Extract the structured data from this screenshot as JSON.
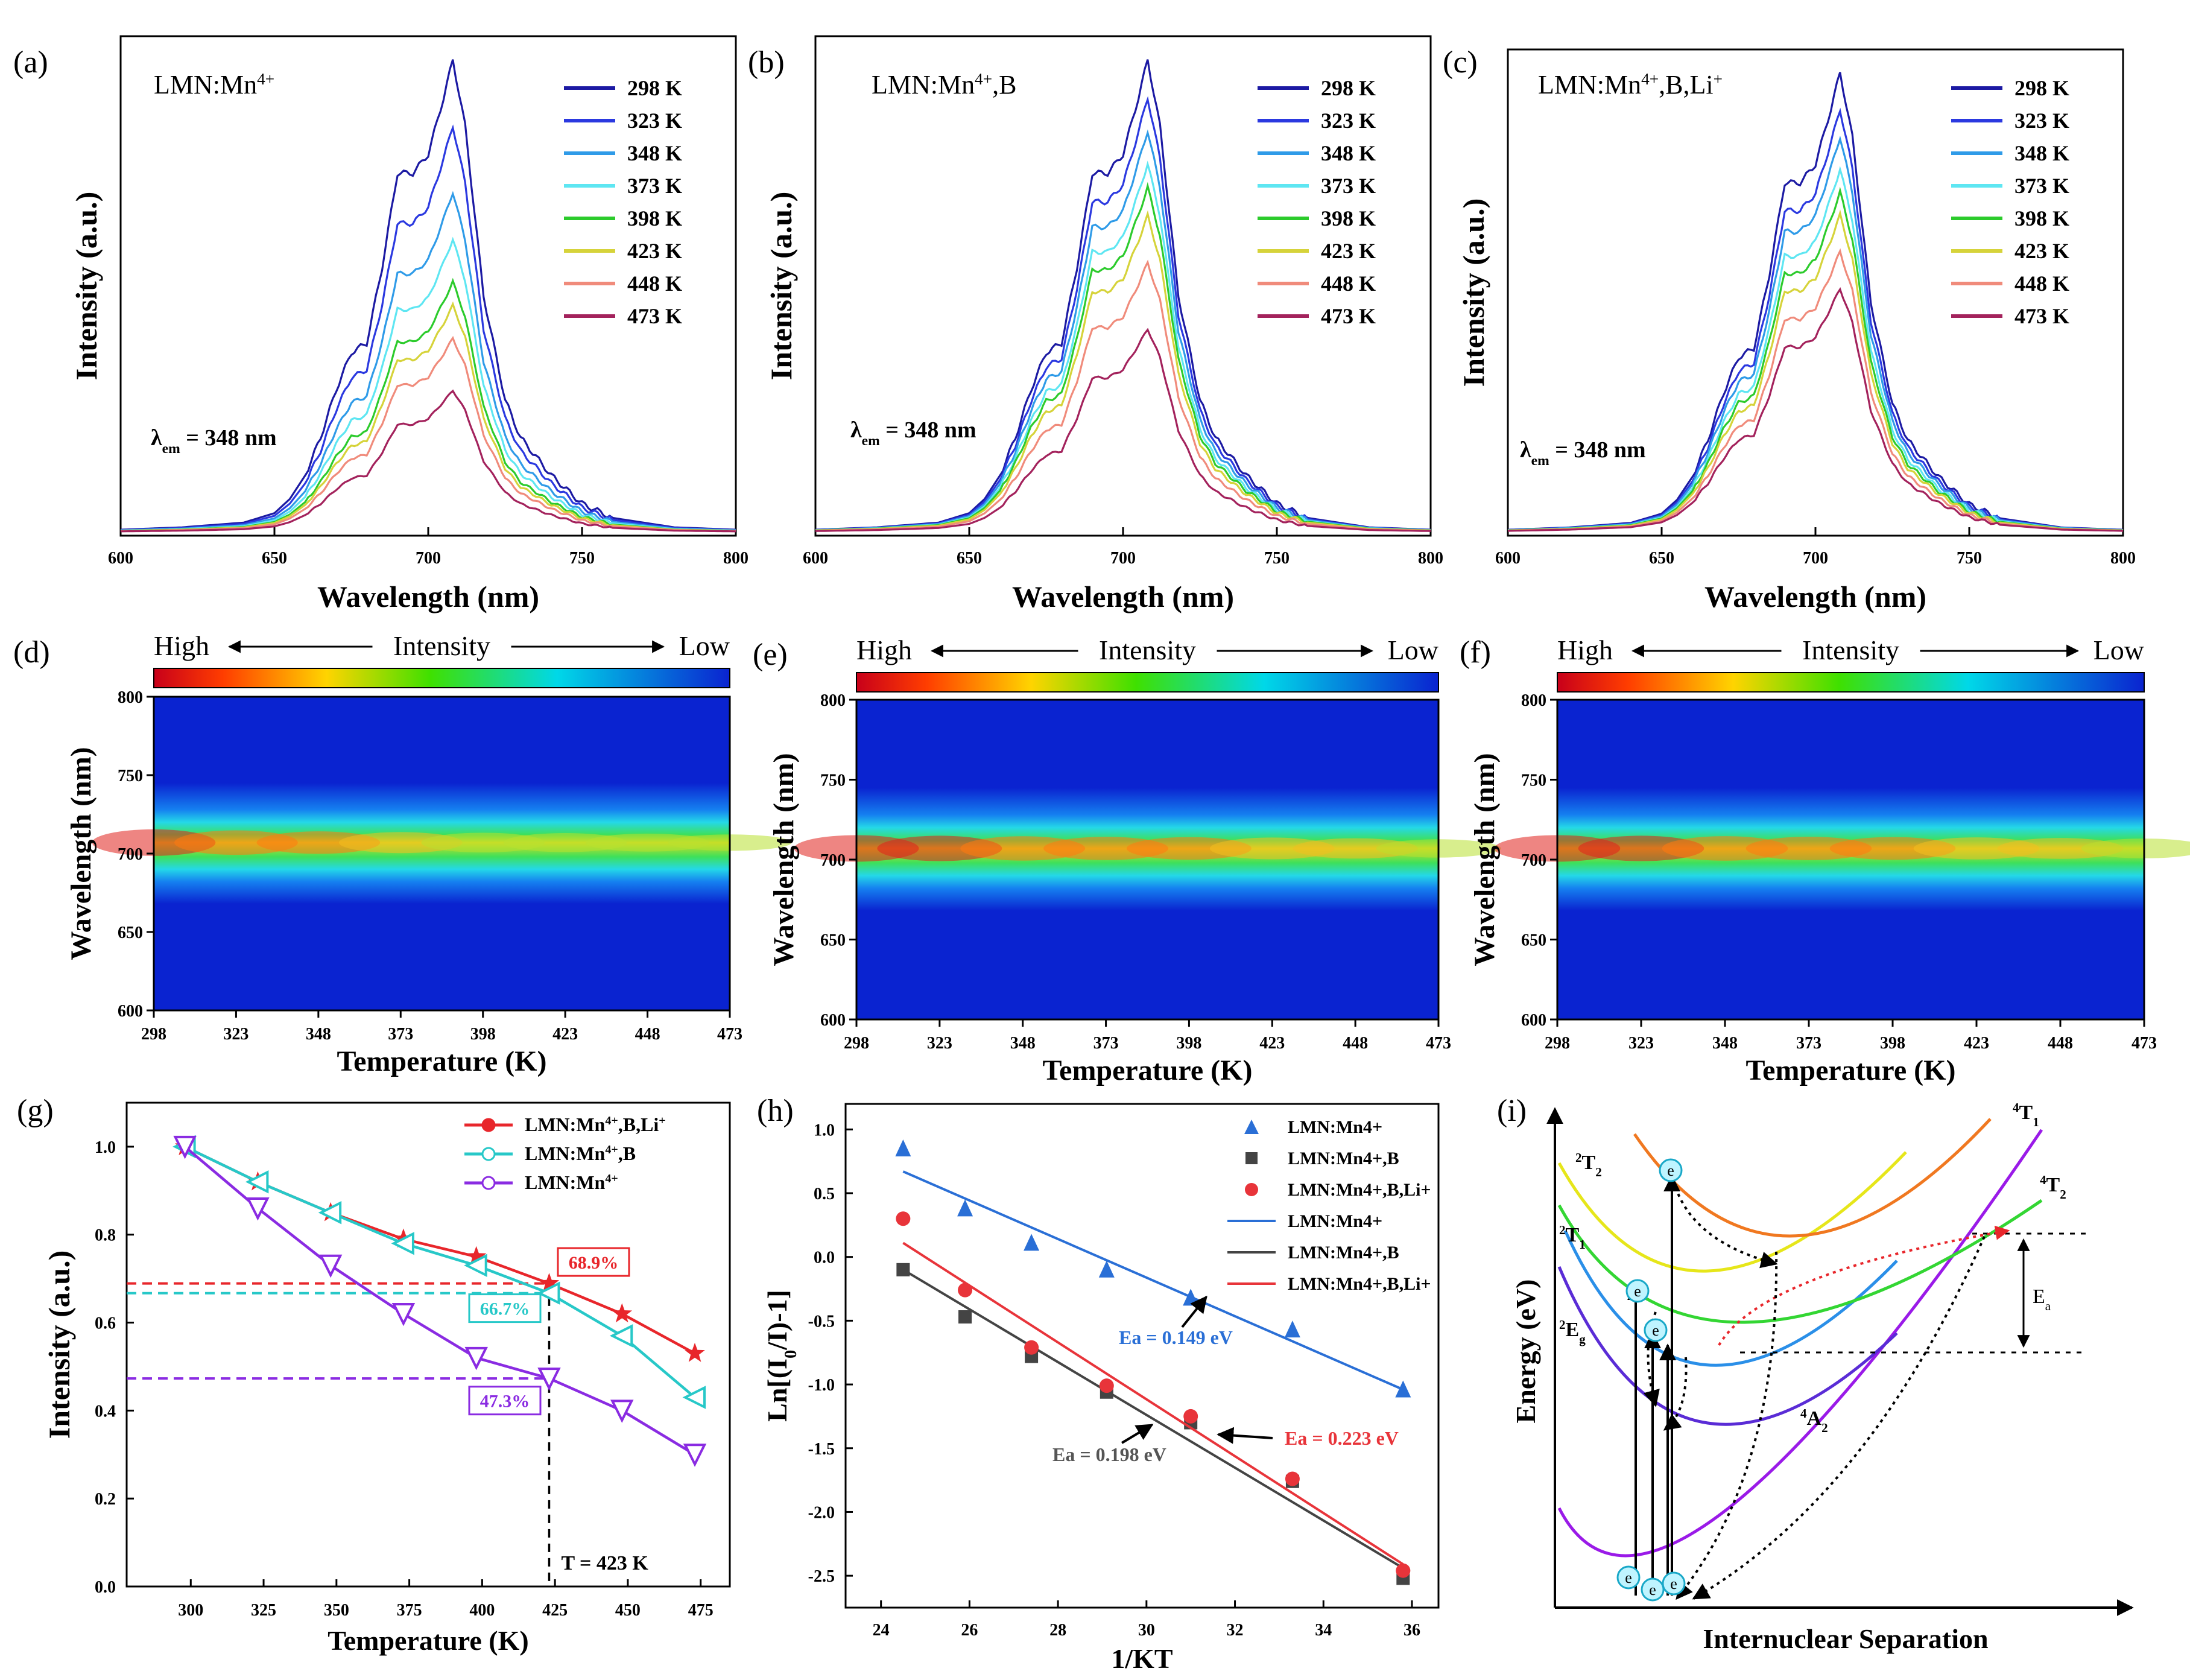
{
  "figure": {
    "palette": [
      "#1c1aa3",
      "#2b39e0",
      "#2f9be8",
      "#5ee6f2",
      "#2ccb2c",
      "#d6d33a",
      "#f08b7b",
      "#a3225c"
    ]
  },
  "panels_top": [
    {
      "label": "(a)",
      "title_base": "LMN:Mn",
      "title_sup": "4+",
      "title_rest": "",
      "lambda_text": "λ",
      "lambda_sub": "em",
      "lambda_value": " = 348 nm",
      "xlabel": "Wavelength (nm)",
      "ylabel": "Intensity (a.u.)",
      "xticks": [
        "600",
        "650",
        "700",
        "750",
        "800"
      ]
    },
    {
      "label": "(b)",
      "title_base": "LMN:Mn",
      "title_sup": "4+",
      "title_rest": ",B",
      "lambda_text": "λ",
      "lambda_sub": "em",
      "lambda_value": " = 348 nm",
      "xlabel": "Wavelength (nm)",
      "ylabel": "Intensity (a.u.)",
      "xticks": [
        "600",
        "650",
        "700",
        "750",
        "800"
      ]
    },
    {
      "label": "(c)",
      "title_base": "LMN:Mn",
      "title_sup": "4+",
      "title_rest": ",B,Li",
      "title_sup2": "+",
      "lambda_text": "λ",
      "lambda_sub": "em",
      "lambda_value": " = 348 nm",
      "xlabel": "Wavelength (nm)",
      "ylabel": "Intensity (a.u.)",
      "xticks": [
        "600",
        "650",
        "700",
        "750",
        "800"
      ]
    }
  ],
  "panels_heat": [
    {
      "label": "(d)",
      "high": "High",
      "mid": "Intensity",
      "low": "Low",
      "ylabel": "Wavelength (nm)",
      "xlabel": "Temperature (K)",
      "yticks": [
        "800",
        "750",
        "700",
        "650",
        "600"
      ],
      "xticks": [
        "298",
        "323",
        "348",
        "373",
        "398",
        "423",
        "448",
        "473"
      ]
    },
    {
      "label": "(e)",
      "high": "High",
      "mid": "Intensity",
      "low": "Low",
      "ylabel": "Wavelength (nm)",
      "xlabel": "Temperature (K)",
      "yticks": [
        "800",
        "750",
        "700",
        "650",
        "600"
      ],
      "xticks": [
        "298",
        "323",
        "348",
        "373",
        "398",
        "423",
        "448",
        "473"
      ]
    },
    {
      "label": "(f)",
      "high": "High",
      "mid": "Intensity",
      "low": "Low",
      "ylabel": "Wavelength (nm)",
      "xlabel": "Temperature (K)",
      "yticks": [
        "800",
        "750",
        "700",
        "650",
        "600"
      ],
      "xticks": [
        "298",
        "323",
        "348",
        "373",
        "398",
        "423",
        "448",
        "473"
      ]
    }
  ],
  "panel_g": {
    "label": "(g)",
    "xlabel": "Temperature (K)",
    "ylabel": "Intensity (a.u.)",
    "xticks": [
      "300",
      "325",
      "350",
      "375",
      "400",
      "425",
      "450",
      "475"
    ],
    "yticks": [
      "0.0",
      "0.2",
      "0.4",
      "0.6",
      "0.8",
      "1.0"
    ],
    "annot_red": "68.9%",
    "annot_cyan": "66.7%",
    "annot_purple": "47.3%",
    "tline": "T = 423 K"
  },
  "panel_h": {
    "label": "(h)",
    "xlabel": "1/KT",
    "ylabel": "Ln[(I",
    "ylabel_sub": "0",
    "ylabel_rest": "/I)-1]",
    "xticks": [
      "24",
      "26",
      "28",
      "30",
      "32",
      "34",
      "36"
    ],
    "yticks": [
      "1.0",
      "0.5",
      "0.0",
      "-0.5",
      "-1.0",
      "-1.5",
      "-2.0",
      "-2.5"
    ],
    "ea_blue": "Ea = 0.149 eV",
    "ea_gray": "Ea = 0.198 eV",
    "ea_red": "Ea = 0.223 eV"
  },
  "panel_i": {
    "label": "(i)",
    "xlabel": "Internuclear Separation",
    "ylabel": "Energy (eV)",
    "electron": "e",
    "ea": "E",
    "ea_sub": "a",
    "levels": [
      {
        "sup": "2",
        "base": "T",
        "sub": "2"
      },
      {
        "sup": "2",
        "base": "T",
        "sub": "1"
      },
      {
        "sup": "2",
        "base": "E",
        "sub": "g"
      },
      {
        "sup": "4",
        "base": "T",
        "sub": "1"
      },
      {
        "sup": "4",
        "base": "T",
        "sub": "2"
      },
      {
        "sup": "4",
        "base": "A",
        "sub": "2"
      }
    ]
  },
  "chart_data": [
    {
      "type": "line",
      "panel": "(a)",
      "title": "LMN:Mn4+",
      "xlabel": "Wavelength (nm)",
      "ylabel": "Intensity (a.u.)",
      "xlim": [
        600,
        800
      ],
      "ylim": [
        0,
        1.05
      ],
      "legend_position": "top-right",
      "legend": [
        "298 K",
        "323 K",
        "348 K",
        "373 K",
        "398 K",
        "423 K",
        "448 K",
        "473 K"
      ],
      "series_scale": [
        1.0,
        0.86,
        0.72,
        0.62,
        0.53,
        0.48,
        0.41,
        0.3
      ],
      "profile": {
        "x": [
          600,
          620,
          640,
          650,
          655,
          660,
          665,
          670,
          675,
          680,
          685,
          690,
          695,
          700,
          705,
          708,
          712,
          718,
          725,
          730,
          740,
          750,
          760,
          780,
          800
        ],
        "y": [
          0.005,
          0.01,
          0.02,
          0.04,
          0.07,
          0.12,
          0.2,
          0.3,
          0.38,
          0.4,
          0.56,
          0.76,
          0.76,
          0.8,
          0.92,
          1.0,
          0.86,
          0.5,
          0.28,
          0.2,
          0.12,
          0.06,
          0.03,
          0.01,
          0.005
        ]
      }
    },
    {
      "type": "line",
      "panel": "(b)",
      "title": "LMN:Mn4+,B",
      "xlabel": "Wavelength (nm)",
      "ylabel": "Intensity (a.u.)",
      "xlim": [
        600,
        800
      ],
      "ylim": [
        0,
        1.05
      ],
      "legend_position": "top-right",
      "legend": [
        "298 K",
        "323 K",
        "348 K",
        "373 K",
        "398 K",
        "423 K",
        "448 K",
        "473 K"
      ],
      "series_scale": [
        1.0,
        0.92,
        0.85,
        0.78,
        0.73,
        0.67,
        0.57,
        0.43
      ],
      "profile": {
        "x": [
          600,
          620,
          640,
          650,
          655,
          660,
          665,
          670,
          675,
          680,
          685,
          690,
          695,
          700,
          705,
          708,
          712,
          718,
          725,
          730,
          740,
          750,
          760,
          780,
          800
        ],
        "y": [
          0.005,
          0.01,
          0.02,
          0.04,
          0.07,
          0.12,
          0.2,
          0.3,
          0.38,
          0.4,
          0.56,
          0.76,
          0.76,
          0.8,
          0.92,
          1.0,
          0.86,
          0.5,
          0.28,
          0.2,
          0.12,
          0.06,
          0.03,
          0.01,
          0.005
        ]
      }
    },
    {
      "type": "line",
      "panel": "(c)",
      "title": "LMN:Mn4+,B,Li+",
      "xlabel": "Wavelength (nm)",
      "ylabel": "Intensity (a.u.)",
      "xlim": [
        600,
        800
      ],
      "ylim": [
        0,
        1.05
      ],
      "legend_position": "top-right",
      "legend": [
        "298 K",
        "323 K",
        "348 K",
        "373 K",
        "398 K",
        "423 K",
        "448 K",
        "473 K"
      ],
      "series_scale": [
        1.0,
        0.92,
        0.86,
        0.79,
        0.74,
        0.69,
        0.61,
        0.53
      ],
      "profile": {
        "x": [
          600,
          620,
          640,
          650,
          655,
          660,
          665,
          670,
          675,
          680,
          685,
          690,
          695,
          700,
          705,
          708,
          712,
          718,
          725,
          730,
          740,
          750,
          760,
          780,
          800
        ],
        "y": [
          0.005,
          0.01,
          0.02,
          0.04,
          0.07,
          0.12,
          0.2,
          0.3,
          0.38,
          0.4,
          0.56,
          0.76,
          0.76,
          0.8,
          0.92,
          1.0,
          0.86,
          0.5,
          0.28,
          0.2,
          0.12,
          0.06,
          0.03,
          0.01,
          0.005
        ]
      }
    },
    {
      "type": "heatmap",
      "panel": "(d)",
      "xlabel": "Temperature (K)",
      "ylabel": "Wavelength (nm)",
      "xlim": [
        298,
        473
      ],
      "ylim": [
        600,
        800
      ],
      "peak_wavelength": 707,
      "intensity_at_T": [
        1.0,
        0.86,
        0.72,
        0.62,
        0.53,
        0.48,
        0.41,
        0.3
      ]
    },
    {
      "type": "heatmap",
      "panel": "(e)",
      "xlabel": "Temperature (K)",
      "ylabel": "Wavelength (nm)",
      "xlim": [
        298,
        473
      ],
      "ylim": [
        600,
        800
      ],
      "peak_wavelength": 707,
      "intensity_at_T": [
        1.0,
        0.92,
        0.85,
        0.78,
        0.73,
        0.67,
        0.57,
        0.43
      ]
    },
    {
      "type": "heatmap",
      "panel": "(f)",
      "xlabel": "Temperature (K)",
      "ylabel": "Wavelength (nm)",
      "xlim": [
        298,
        473
      ],
      "ylim": [
        600,
        800
      ],
      "peak_wavelength": 707,
      "intensity_at_T": [
        1.0,
        0.92,
        0.86,
        0.79,
        0.74,
        0.69,
        0.61,
        0.53
      ]
    },
    {
      "type": "line",
      "panel": "(g)",
      "xlabel": "Temperature (K)",
      "ylabel": "Intensity (a.u.)",
      "xlim": [
        278,
        485
      ],
      "ylim": [
        0,
        1.1
      ],
      "legend_position": "top-right",
      "x": [
        298,
        323,
        348,
        373,
        398,
        423,
        448,
        473
      ],
      "series": [
        {
          "name": "LMN:Mn4+,B,Li+",
          "color": "#e8262b",
          "marker": "star",
          "values": [
            1.0,
            0.92,
            0.85,
            0.79,
            0.75,
            0.689,
            0.62,
            0.53
          ]
        },
        {
          "name": "LMN:Mn4+,B",
          "color": "#27c8c8",
          "marker": "triangle-left",
          "values": [
            1.0,
            0.92,
            0.85,
            0.78,
            0.73,
            0.667,
            0.57,
            0.43
          ]
        },
        {
          "name": "LMN:Mn4+",
          "color": "#8a2be2",
          "marker": "triangle-down",
          "values": [
            1.0,
            0.86,
            0.73,
            0.62,
            0.52,
            0.473,
            0.4,
            0.3
          ]
        }
      ],
      "reference_line_x": 423
    },
    {
      "type": "scatter",
      "panel": "(h)",
      "xlabel": "1/KT",
      "ylabel": "Ln[(I0/I)-1]",
      "xlim": [
        23.2,
        36.6
      ],
      "ylim": [
        -2.75,
        1.2
      ],
      "legend_position": "top-right",
      "x": [
        24.5,
        25.9,
        27.4,
        29.1,
        31.0,
        33.3,
        35.8
      ],
      "series": [
        {
          "name": "LMN:Mn4+",
          "color": "#2a6fd6",
          "marker": "triangle-up",
          "values": [
            0.85,
            0.38,
            0.11,
            -0.1,
            -0.32,
            -0.57,
            -1.04
          ],
          "fit": [
            [
              24.5,
              0.67
            ],
            [
              35.8,
              -1.04
            ]
          ]
        },
        {
          "name": "LMN:Mn4+,B",
          "color": "#444444",
          "marker": "square",
          "values": [
            -0.1,
            -0.47,
            -0.78,
            -1.06,
            -1.3,
            -1.76,
            -2.52
          ],
          "fit": [
            [
              24.5,
              -0.1
            ],
            [
              35.8,
              -2.44
            ]
          ]
        },
        {
          "name": "LMN:Mn4+,B,Li+",
          "color": "#e8343a",
          "marker": "circle",
          "values": [
            0.3,
            -0.26,
            -0.71,
            -1.01,
            -1.25,
            -1.74,
            -2.46
          ],
          "fit": [
            [
              24.5,
              0.11
            ],
            [
              35.8,
              -2.41
            ]
          ]
        }
      ],
      "fit_legend": [
        "LMN:Mn4+",
        "LMN:Mn4+,B",
        "LMN:Mn4+,B,Li+"
      ]
    }
  ]
}
